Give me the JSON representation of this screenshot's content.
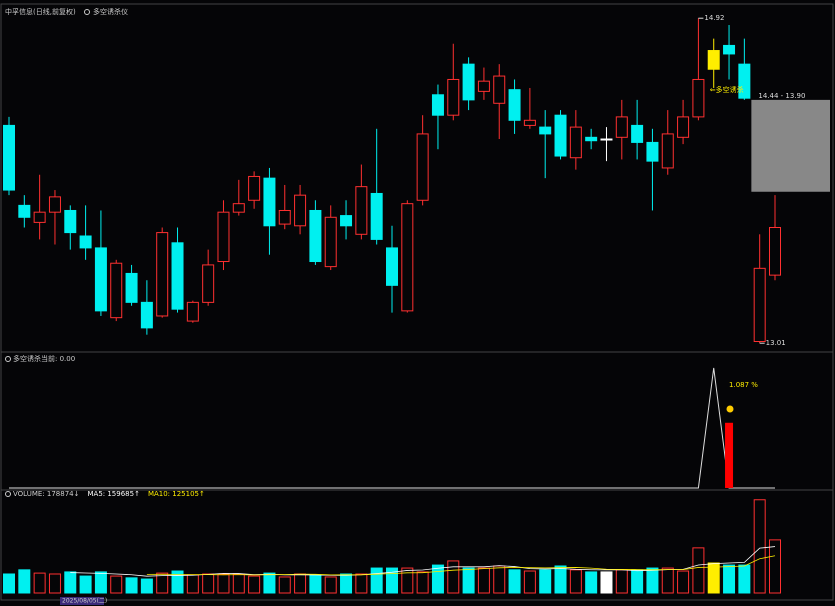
{
  "chart_data": {
    "type": "candlestick",
    "title": "中孚信息(日线,前复权)",
    "indicator_name": "多空诱杀仪",
    "open": [
      14.29,
      13.82,
      13.72,
      13.78,
      13.79,
      13.64,
      13.57,
      13.16,
      13.42,
      13.25,
      13.17,
      13.6,
      13.14,
      13.25,
      13.49,
      13.78,
      13.85,
      13.98,
      13.71,
      13.7,
      13.79,
      13.46,
      13.76,
      13.65,
      13.89,
      13.57,
      13.2,
      13.85,
      14.47,
      14.35,
      14.65,
      14.49,
      14.42,
      14.5,
      14.29,
      14.28,
      14.35,
      14.1,
      14.22,
      14.21,
      14.22,
      14.29,
      14.19,
      14.04,
      14.22,
      14.34,
      14.73,
      14.76,
      14.65,
      13.02,
      13.41
    ],
    "high": [
      14.34,
      13.88,
      14.0,
      13.91,
      13.82,
      13.82,
      13.79,
      13.5,
      13.47,
      13.38,
      13.69,
      13.69,
      13.26,
      13.56,
      13.85,
      13.97,
      14.02,
      14.04,
      13.94,
      13.94,
      13.85,
      13.82,
      13.85,
      14.06,
      14.27,
      13.7,
      13.85,
      14.35,
      14.53,
      14.77,
      14.69,
      14.63,
      14.65,
      14.56,
      14.51,
      14.38,
      14.38,
      14.38,
      14.27,
      14.28,
      14.44,
      14.44,
      14.27,
      14.38,
      14.44,
      14.92,
      14.8,
      14.88,
      14.8,
      13.65,
      13.88
    ],
    "low": [
      13.88,
      13.69,
      13.62,
      13.59,
      13.56,
      13.5,
      13.17,
      13.14,
      13.23,
      13.06,
      13.16,
      13.19,
      13.13,
      13.23,
      13.44,
      13.76,
      13.8,
      13.53,
      13.68,
      13.65,
      13.47,
      13.44,
      13.62,
      13.62,
      13.59,
      13.19,
      13.19,
      13.82,
      14.15,
      14.32,
      14.38,
      14.44,
      14.21,
      14.24,
      14.27,
      13.98,
      14.09,
      14.03,
      14.15,
      14.08,
      14.09,
      14.09,
      13.79,
      14.0,
      14.18,
      14.32,
      14.51,
      14.56,
      14.44,
      13.01,
      13.38
    ],
    "close": [
      13.91,
      13.75,
      13.78,
      13.87,
      13.66,
      13.57,
      13.2,
      13.48,
      13.25,
      13.1,
      13.66,
      13.21,
      13.25,
      13.47,
      13.78,
      13.83,
      13.99,
      13.7,
      13.79,
      13.88,
      13.49,
      13.75,
      13.7,
      13.93,
      13.62,
      13.35,
      13.83,
      14.24,
      14.35,
      14.56,
      14.44,
      14.55,
      14.58,
      14.32,
      14.32,
      14.24,
      14.11,
      14.28,
      14.2,
      14.21,
      14.34,
      14.19,
      14.08,
      14.24,
      14.34,
      14.56,
      14.62,
      14.71,
      14.45,
      13.45,
      13.69
    ],
    "volume": [
      64000,
      78000,
      67000,
      64000,
      71000,
      57000,
      71000,
      57000,
      51000,
      47000,
      67000,
      74000,
      61000,
      64000,
      64000,
      64000,
      57000,
      67000,
      54000,
      64000,
      61000,
      54000,
      64000,
      64000,
      84000,
      84000,
      84000,
      71000,
      94000,
      108000,
      84000,
      84000,
      91000,
      78000,
      74000,
      78000,
      91000,
      78000,
      71000,
      71000,
      78000,
      78000,
      84000,
      84000,
      74000,
      152000,
      101000,
      94000,
      94000,
      314000,
      178874
    ],
    "up_color": "#ff3030",
    "down_color": "#00f0f0",
    "flat_color": "#ffffff",
    "highlight": {
      "index": 46,
      "color": "#ffee00"
    },
    "ylim": [
      12.97,
      14.98
    ],
    "high_label": {
      "label": "14.92",
      "index": 45,
      "value": 14.92
    },
    "low_label": {
      "label": "13.01",
      "index": 49,
      "value": 13.01
    },
    "zone": {
      "label": "14.44 - 13.90",
      "top": 14.44,
      "bottom": 13.9,
      "color": "#888888"
    },
    "signal": {
      "label": "⇐多空诱杀",
      "index": 46
    },
    "indicator": {
      "name": "多空诱杀",
      "current": "当前: 0.00",
      "ylim": [
        0,
        2.2
      ],
      "line_values": [
        0,
        0,
        0,
        0,
        0,
        0,
        0,
        0,
        0,
        0,
        0,
        0,
        0,
        0,
        0,
        0,
        0,
        0,
        0,
        0,
        0,
        0,
        0,
        0,
        0,
        0,
        0,
        0,
        0,
        0,
        0,
        0,
        0,
        0,
        0,
        0,
        0,
        0,
        0,
        0,
        0,
        0,
        0,
        0,
        0,
        0,
        2.0,
        0,
        0,
        0,
        0
      ],
      "bar_values": [
        null,
        null,
        null,
        null,
        null,
        null,
        null,
        null,
        null,
        null,
        null,
        null,
        null,
        null,
        null,
        null,
        null,
        null,
        null,
        null,
        null,
        null,
        null,
        null,
        null,
        null,
        null,
        null,
        null,
        null,
        null,
        null,
        null,
        null,
        null,
        null,
        null,
        null,
        null,
        null,
        null,
        null,
        null,
        null,
        null,
        null,
        null,
        1.087,
        null,
        null,
        null
      ],
      "bar_label": "1.087 %",
      "bar_color": "#ff0000"
    },
    "volume_ylim": [
      0,
      330000
    ],
    "volume_legend": [
      {
        "text": "VOLUME: 178874↓",
        "color": "#d0d0d0"
      },
      {
        "text": "MA5: 159685↑",
        "color": "#ffffff"
      },
      {
        "text": "MA10: 125105↑",
        "color": "#ffee00"
      }
    ],
    "date_label": "2025/08/05(二)"
  }
}
